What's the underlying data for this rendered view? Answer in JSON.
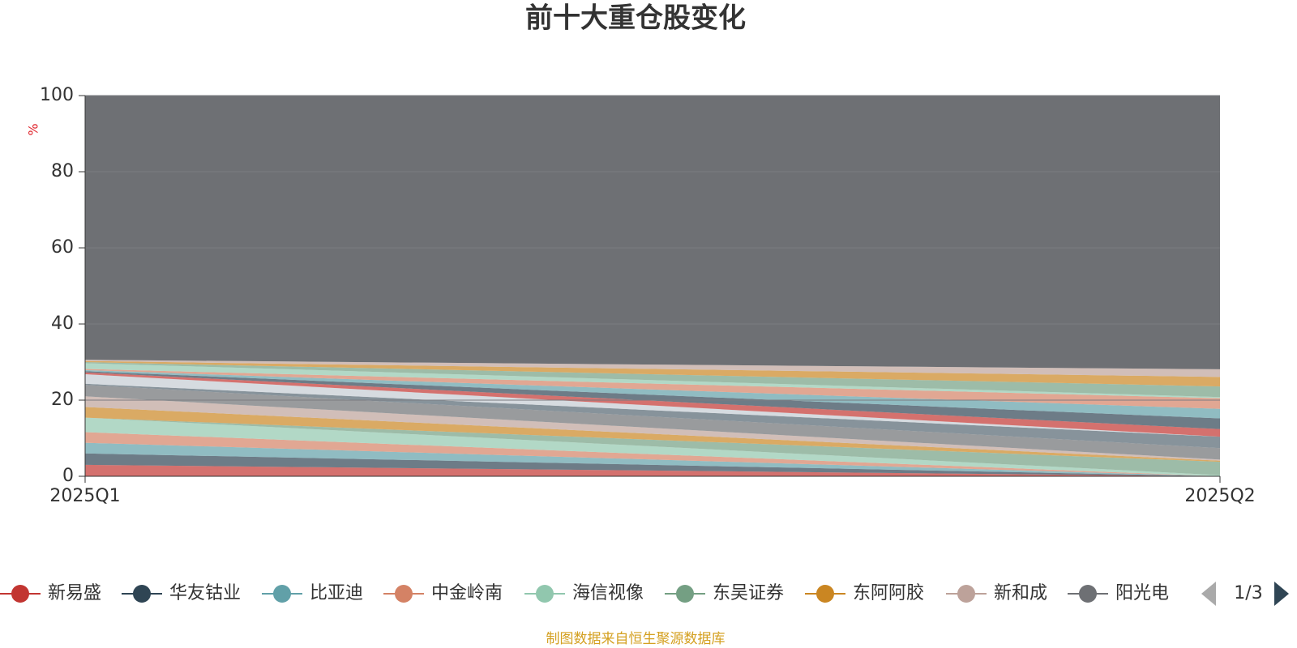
{
  "chart_data": {
    "type": "stacked_area",
    "title": "前十大重仓股变化",
    "y_label": "%",
    "categories": [
      "2025Q1",
      "2025Q2"
    ],
    "ylim": [
      0,
      100
    ],
    "yticks": [
      0,
      20,
      40,
      60,
      80,
      100
    ],
    "grid": true,
    "series": [
      {
        "name": "新易盛",
        "color": "#c23531",
        "values": [
          3,
          0
        ]
      },
      {
        "name": "华友钴业",
        "color": "#2f4554",
        "values": [
          3,
          0
        ]
      },
      {
        "name": "比亚迪",
        "color": "#61a0a8",
        "values": [
          2.8,
          0
        ]
      },
      {
        "name": "中金岭南",
        "color": "#d48265",
        "values": [
          2.8,
          0
        ]
      },
      {
        "name": "海信视像",
        "color": "#91c7ae",
        "values": [
          3.8,
          0.3
        ]
      },
      {
        "name": "东吴证券",
        "color": "#749f83",
        "values": [
          0,
          3.5
        ]
      },
      {
        "name": "东阿阿胶",
        "color": "#ca8622",
        "values": [
          2.8,
          0.3
        ]
      },
      {
        "name": "新和成",
        "color": "#bda29a",
        "values": [
          2.8,
          0.3
        ]
      },
      {
        "name": "阳光电",
        "color": "#6e7074",
        "values": [
          3,
          3
        ]
      },
      {
        "color": "#546570",
        "values": [
          0.3,
          3
        ]
      },
      {
        "color": "#c4ccd3",
        "values": [
          2.5,
          0
        ]
      },
      {
        "color": "#c23531",
        "values": [
          0.5,
          2
        ]
      },
      {
        "color": "#2f4554",
        "values": [
          0.3,
          2.8
        ]
      },
      {
        "color": "#61a0a8",
        "values": [
          0.3,
          2.5
        ]
      },
      {
        "color": "#d48265",
        "values": [
          0.3,
          2.8
        ]
      },
      {
        "color": "#91c7ae",
        "values": [
          1.5,
          0.3
        ]
      },
      {
        "color": "#749f83",
        "values": [
          0.3,
          2.8
        ]
      },
      {
        "color": "#ca8622",
        "values": [
          0.3,
          2.5
        ]
      },
      {
        "color": "#bda29a",
        "values": [
          0.3,
          2
        ]
      },
      {
        "color": "#6e7074",
        "values": [
          69.4,
          71.9
        ]
      }
    ],
    "legend_page": "1/3",
    "source": "制图数据来自恒生聚源数据库"
  }
}
